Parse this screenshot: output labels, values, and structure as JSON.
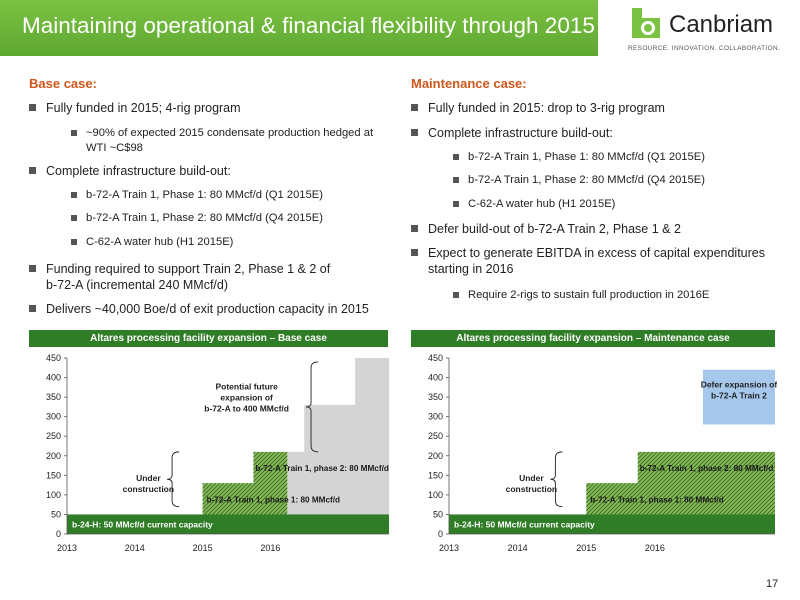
{
  "header": {
    "title": "Maintaining operational & financial flexibility through 2015",
    "logo": {
      "name": "Canbriam",
      "tagline": "RESOURCE. INNOVATION. COLLABORATION.",
      "icon": "canbriam-logo-icon"
    }
  },
  "colors": {
    "green": "#5ea832",
    "dark_green": "#2f7d26",
    "orange": "#d0561a",
    "grey_fill": "#d4d4d4",
    "blue_fill": "#a6c8ec"
  },
  "base_case": {
    "heading": "Base case:",
    "b1": "Fully funded in 2015; 4-rig program",
    "b1_sub1_l1": "~90% of expected 2015 condensate production hedged at",
    "b1_sub1_l2": "WTI ~C$98",
    "b2": "Complete infrastructure build-out:",
    "b2_sub1": "b-72-A Train 1, Phase 1: 80 MMcf/d (Q1 2015E)",
    "b2_sub2": "b-72-A Train 1, Phase 2: 80 MMcf/d (Q4 2015E)",
    "b2_sub3": "C-62-A water hub (H1 2015E)",
    "b3_l1": "Funding required to support Train 2, Phase 1 & 2 of",
    "b3_l2": "b-72-A (incremental 240 MMcf/d)",
    "b4": "Delivers ~40,000 Boe/d of exit production capacity in 2015"
  },
  "maintenance_case": {
    "heading": "Maintenance case:",
    "b1": "Fully funded in 2015: drop to 3-rig program",
    "b2": "Complete infrastructure build-out:",
    "b2_sub1": "b-72-A Train 1, Phase 1: 80 MMcf/d (Q1 2015E)",
    "b2_sub2": "b-72-A Train 1, Phase 2: 80 MMcf/d (Q4 2015E)",
    "b2_sub3": "C-62-A water hub (H1 2015E)",
    "b3": "Defer build-out of b-72-A Train 2, Phase 1 & 2",
    "b4_l1": "Expect to generate EBITDA in excess of capital expenditures",
    "b4_l2": "starting in 2016",
    "b4_sub1": "Require 2-rigs to sustain full production in 2016E"
  },
  "chart_data": [
    {
      "type": "area",
      "title": "Altares processing facility expansion – Base case",
      "x_ticks": [
        "2013",
        "2014",
        "2015",
        "2016"
      ],
      "y_ticks": [
        "0",
        "50",
        "100",
        "150",
        "200",
        "250",
        "300",
        "350",
        "400",
        "450"
      ],
      "ylim": [
        0,
        450
      ],
      "grid": false,
      "steps": [
        {
          "x": 2013.0,
          "y": 50
        },
        {
          "x": 2014.0,
          "y": 50
        },
        {
          "x": 2015.0,
          "y": 130
        },
        {
          "x": 2015.75,
          "y": 210
        },
        {
          "x": 2016.0,
          "y": 210
        },
        {
          "x": 2016.25,
          "y": 210
        }
      ],
      "future_steps": [
        {
          "x": 2016.25,
          "y": 210
        },
        {
          "x": 2016.5,
          "y": 330
        },
        {
          "x": 2017.25,
          "y": 450
        }
      ],
      "x_end": 2017.75,
      "series_labels": {
        "base": "b-24-H: 50 MMcf/d current capacity",
        "phase1": "b-72-A Train 1, phase 1: 80 MMcf/d",
        "phase2": "b-72-A Train 1, phase 2:  80 MMcf/d"
      },
      "annotations": {
        "under_l1": "Under",
        "under_l2": "construction",
        "future_l1": "Potential future",
        "future_l2": "expansion of",
        "future_l3": "b-72-A to 400 MMcf/d"
      }
    },
    {
      "type": "area",
      "title": "Altares processing facility expansion – Maintenance case",
      "x_ticks": [
        "2013",
        "2014",
        "2015",
        "2016"
      ],
      "y_ticks": [
        "0",
        "50",
        "100",
        "150",
        "200",
        "250",
        "300",
        "350",
        "400",
        "450"
      ],
      "ylim": [
        0,
        450
      ],
      "grid": false,
      "steps": [
        {
          "x": 2013.0,
          "y": 50
        },
        {
          "x": 2014.0,
          "y": 50
        },
        {
          "x": 2015.0,
          "y": 130
        },
        {
          "x": 2015.75,
          "y": 210
        }
      ],
      "x_end": 2017.75,
      "series_labels": {
        "base": "b-24-H: 50 MMcf/d current capacity",
        "phase1": "b-72-A Train 1, phase 1: 80 MMcf/d",
        "phase2": "b-72-A Train 1, phase 2:  80 MMcf/d"
      },
      "annotations": {
        "under_l1": "Under",
        "under_l2": "construction",
        "defer_l1": "Defer expansion of",
        "defer_l2": "b-72-A Train 2"
      }
    }
  ],
  "footer": {
    "page_number": "17"
  }
}
